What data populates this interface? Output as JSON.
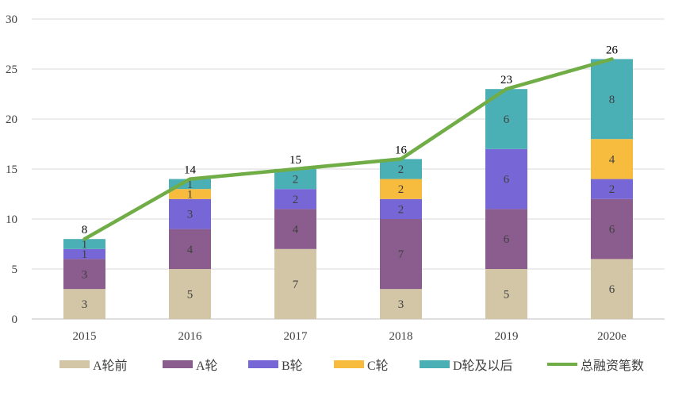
{
  "chart_data": {
    "type": "bar",
    "stacked": true,
    "categories": [
      "2015",
      "2016",
      "2017",
      "2018",
      "2019",
      "2020e"
    ],
    "series": [
      {
        "name": "A轮前",
        "values": [
          3,
          5,
          7,
          3,
          5,
          6
        ],
        "color": "#D3C6A6"
      },
      {
        "name": "A轮",
        "values": [
          3,
          4,
          4,
          7,
          6,
          6
        ],
        "color": "#8B5C8E"
      },
      {
        "name": "B轮",
        "values": [
          1,
          3,
          2,
          2,
          6,
          2
        ],
        "color": "#7767D6"
      },
      {
        "name": "C轮",
        "values": [
          0,
          1,
          0,
          2,
          0,
          4
        ],
        "color": "#F7BC3E"
      },
      {
        "name": "D轮及以后",
        "values": [
          1,
          1,
          2,
          2,
          6,
          8
        ],
        "color": "#4BAFB6"
      }
    ],
    "line": {
      "name": "总融资笔数",
      "values": [
        8,
        14,
        15,
        16,
        23,
        26
      ],
      "color": "#70AD47"
    },
    "segment_labels": [
      [
        "3",
        "3",
        "1",
        "",
        "1"
      ],
      [
        "5",
        "4",
        "3",
        "1",
        "1"
      ],
      [
        "7",
        "4",
        "2",
        "",
        "2"
      ],
      [
        "3",
        "7",
        "2",
        "2",
        "2"
      ],
      [
        "5",
        "6",
        "6",
        "",
        "6"
      ],
      [
        "6",
        "6",
        "2",
        "4",
        "8"
      ]
    ],
    "total_labels": [
      "8",
      "14",
      "15",
      "16",
      "23",
      "26"
    ],
    "yticks": [
      "0",
      "5",
      "10",
      "15",
      "20",
      "25",
      "30"
    ],
    "ylim": [
      0,
      30
    ],
    "grid": true,
    "legend": "bottom",
    "title": "",
    "xlabel": "",
    "ylabel": ""
  }
}
